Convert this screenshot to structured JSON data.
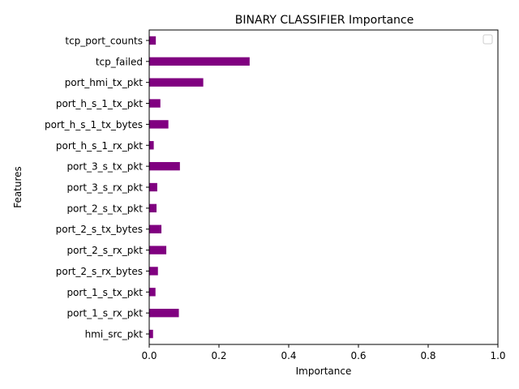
{
  "chart_data": {
    "type": "bar",
    "orientation": "horizontal",
    "title": "BINARY CLASSIFIER Importance",
    "xlabel": "Importance",
    "ylabel": "Features",
    "xlim": [
      0,
      1
    ],
    "xticks": [
      "0.0",
      "0.2",
      "0.4",
      "0.6",
      "0.8",
      "1.0"
    ],
    "categories": [
      "hmi_src_pkt",
      "port_1_s_rx_pkt",
      "port_1_s_tx_pkt",
      "port_2_s_rx_bytes",
      "port_2_s_rx_pkt",
      "port_2_s_tx_bytes",
      "port_2_s_tx_pkt",
      "port_3_s_rx_pkt",
      "port_3_s_tx_pkt",
      "port_h_s_1_rx_pkt",
      "port_h_s_1_tx_bytes",
      "port_h_s_1_tx_pkt",
      "port_hmi_tx_pkt",
      "tcp_failed",
      "tcp_port_counts"
    ],
    "values": [
      0.011,
      0.085,
      0.018,
      0.025,
      0.049,
      0.035,
      0.021,
      0.023,
      0.088,
      0.013,
      0.055,
      0.032,
      0.155,
      0.288,
      0.019
    ],
    "bar_color": "#800080",
    "grid": false,
    "legend": "top-right (empty)"
  }
}
